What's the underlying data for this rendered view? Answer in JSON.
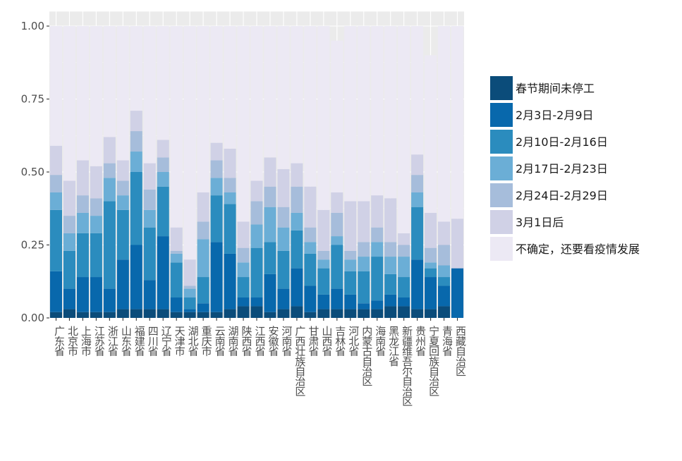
{
  "chart_data": {
    "type": "bar",
    "stacked": true,
    "normalized": true,
    "title": "",
    "xlabel": "",
    "ylabel": "",
    "ylim": [
      0,
      1
    ],
    "yticks": [
      "0.00",
      "0.25",
      "0.50",
      "0.75",
      "1.00"
    ],
    "grid": true,
    "legend_position": "right",
    "categories": [
      "广东省",
      "北京市",
      "上海市",
      "江苏省",
      "浙江省",
      "山东省",
      "福建省",
      "四川省",
      "辽宁省",
      "天津市",
      "湖北省",
      "重庆市",
      "云南省",
      "湖南省",
      "陕西省",
      "江西省",
      "安徽省",
      "河南省",
      "广西壮族自治区",
      "甘肃省",
      "山西省",
      "吉林省",
      "河北省",
      "内蒙古自治区",
      "海南省",
      "黑龙江省",
      "新疆维吾尔自治区",
      "贵州省",
      "宁夏回族自治区",
      "青海省",
      "西藏自治区"
    ],
    "series": [
      {
        "name": "春节期间未停工",
        "color": "#0b4c7a",
        "values": [
          0.02,
          0.03,
          0.02,
          0.02,
          0.02,
          0.03,
          0.03,
          0.03,
          0.03,
          0.02,
          0.02,
          0.02,
          0.02,
          0.03,
          0.04,
          0.04,
          0.02,
          0.03,
          0.04,
          0.02,
          0.03,
          0.03,
          0.03,
          0.03,
          0.03,
          0.04,
          0.04,
          0.03,
          0.03,
          0.04,
          0.0
        ]
      },
      {
        "name": "2月3日-2月9日",
        "color": "#0868ac",
        "values": [
          0.14,
          0.07,
          0.12,
          0.12,
          0.08,
          0.17,
          0.22,
          0.1,
          0.25,
          0.05,
          0.01,
          0.03,
          0.24,
          0.19,
          0.03,
          0.03,
          0.13,
          0.07,
          0.13,
          0.09,
          0.05,
          0.07,
          0.05,
          0.02,
          0.03,
          0.04,
          0.03,
          0.17,
          0.11,
          0.07,
          0.17
        ]
      },
      {
        "name": "2月10日-2月16日",
        "color": "#2b8cbe",
        "values": [
          0.21,
          0.13,
          0.15,
          0.15,
          0.3,
          0.17,
          0.25,
          0.18,
          0.17,
          0.12,
          0.04,
          0.09,
          0.16,
          0.17,
          0.07,
          0.17,
          0.11,
          0.13,
          0.13,
          0.11,
          0.09,
          0.15,
          0.08,
          0.11,
          0.15,
          0.07,
          0.07,
          0.18,
          0.03,
          0.03,
          0.0
        ]
      },
      {
        "name": "2月17日-2月23日",
        "color": "#6baed6",
        "values": [
          0.06,
          0.06,
          0.07,
          0.06,
          0.08,
          0.05,
          0.07,
          0.06,
          0.05,
          0.03,
          0.03,
          0.13,
          0.06,
          0.04,
          0.05,
          0.08,
          0.12,
          0.08,
          0.06,
          0.04,
          0.03,
          0.03,
          0.04,
          0.05,
          0.05,
          0.06,
          0.07,
          0.05,
          0.02,
          0.04,
          0.0
        ]
      },
      {
        "name": "2月24日-2月29日",
        "color": "#a6bddb",
        "values": [
          0.06,
          0.06,
          0.06,
          0.06,
          0.05,
          0.05,
          0.07,
          0.07,
          0.05,
          0.01,
          0.01,
          0.06,
          0.06,
          0.05,
          0.05,
          0.08,
          0.07,
          0.07,
          0.09,
          0.05,
          0.03,
          0.08,
          0.03,
          0.05,
          0.05,
          0.05,
          0.04,
          0.06,
          0.05,
          0.07,
          0.0
        ]
      },
      {
        "name": "3月1日后",
        "color": "#d0d1e6",
        "values": [
          0.1,
          0.12,
          0.12,
          0.11,
          0.09,
          0.07,
          0.07,
          0.09,
          0.06,
          0.08,
          0.09,
          0.1,
          0.06,
          0.1,
          0.09,
          0.07,
          0.1,
          0.13,
          0.08,
          0.14,
          0.14,
          0.07,
          0.17,
          0.14,
          0.11,
          0.15,
          0.04,
          0.07,
          0.12,
          0.08,
          0.17
        ]
      },
      {
        "name": "不确定，还要看疫情发展",
        "color": "#ece9f4",
        "values": [
          0.41,
          0.53,
          0.46,
          0.48,
          0.38,
          0.46,
          0.29,
          0.47,
          0.39,
          0.69,
          0.8,
          0.57,
          0.4,
          0.42,
          0.67,
          0.53,
          0.45,
          0.49,
          0.47,
          0.55,
          0.63,
          0.52,
          0.6,
          0.6,
          0.58,
          0.59,
          0.71,
          0.44,
          0.54,
          0.67,
          0.66
        ]
      }
    ]
  }
}
